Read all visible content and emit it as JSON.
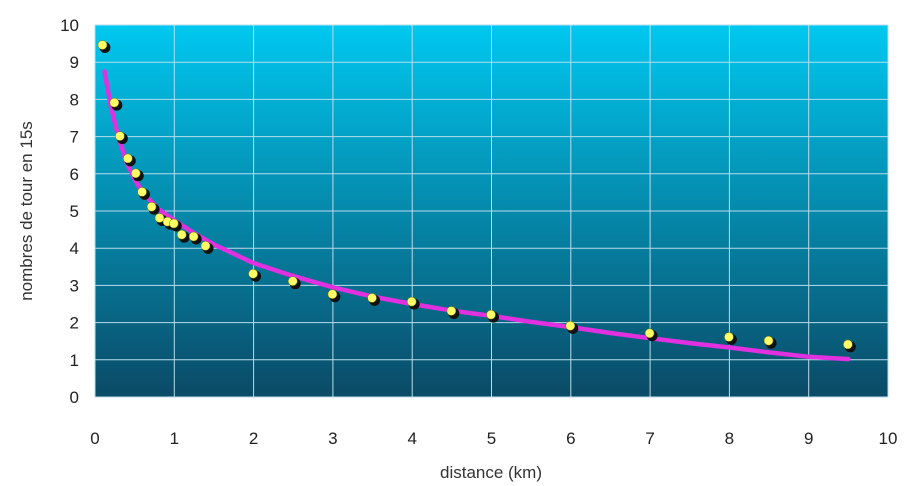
{
  "chart_data": {
    "type": "scatter",
    "title": "",
    "xlabel": "distance (km)",
    "ylabel": "nombres de tour en 15s",
    "xlim": [
      0,
      10
    ],
    "ylim": [
      0,
      10
    ],
    "x_ticks": [
      "0",
      "1",
      "2",
      "3",
      "4",
      "5",
      "6",
      "7",
      "8",
      "9",
      "10"
    ],
    "y_ticks": [
      "0",
      "1",
      "2",
      "3",
      "4",
      "5",
      "6",
      "7",
      "8",
      "9",
      "10"
    ],
    "grid": true,
    "legend": "none",
    "colors": {
      "background_top": "#00c8f0",
      "background_bottom": "#0a4a66",
      "grid": "#b8dceb",
      "points": "#ffff66",
      "point_shadow": "#111111",
      "trend": "#e030e0"
    },
    "series": [
      {
        "kind": "points",
        "x": [
          0.1,
          0.25,
          0.32,
          0.42,
          0.52,
          0.6,
          0.72,
          0.82,
          0.92,
          1.0,
          1.1,
          1.25,
          1.4,
          2.0,
          2.5,
          3.0,
          3.5,
          4.0,
          4.5,
          5.0,
          6.0,
          7.0,
          8.0,
          8.5,
          9.5
        ],
        "y": [
          9.45,
          7.9,
          7.0,
          6.4,
          6.0,
          5.5,
          5.1,
          4.8,
          4.7,
          4.65,
          4.35,
          4.3,
          4.05,
          3.3,
          3.1,
          2.75,
          2.65,
          2.55,
          2.3,
          2.2,
          1.9,
          1.7,
          1.6,
          1.5,
          1.4
        ]
      },
      {
        "kind": "trend",
        "x": [
          0.12,
          0.2,
          0.3,
          0.4,
          0.5,
          0.6,
          0.8,
          1.0,
          1.25,
          1.5,
          2.0,
          2.5,
          3.0,
          3.5,
          4.0,
          4.5,
          5.0,
          5.5,
          6.0,
          6.5,
          7.0,
          7.5,
          8.0,
          8.5,
          9.0,
          9.5
        ],
        "y": [
          8.75,
          7.8,
          6.95,
          6.3,
          5.85,
          5.5,
          5.05,
          4.75,
          4.4,
          4.1,
          3.6,
          3.25,
          2.95,
          2.7,
          2.5,
          2.32,
          2.18,
          2.02,
          1.88,
          1.72,
          1.58,
          1.45,
          1.33,
          1.2,
          1.08,
          1.02
        ]
      }
    ]
  }
}
